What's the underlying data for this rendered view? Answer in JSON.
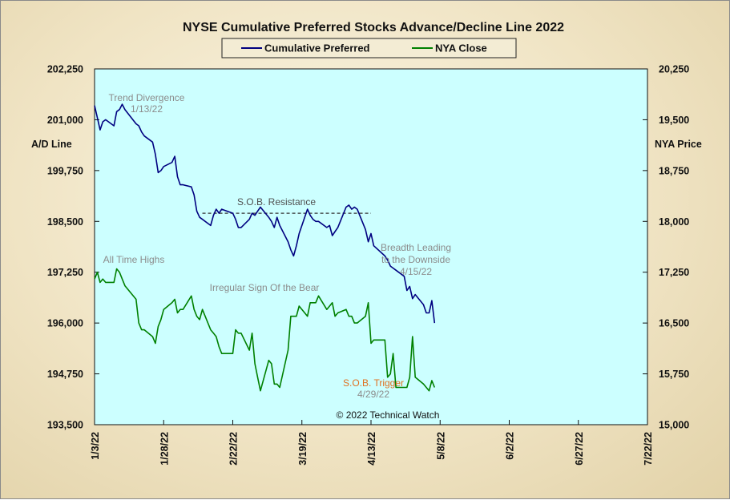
{
  "chart_data": {
    "type": "line",
    "title": "NYSE Cumulative  Preferred Stocks Advance/Decline  Line 2022",
    "ylabel_left": "A/D Line",
    "ylabel_right": "NYA Price",
    "copyright": "© 2022 Technical Watch",
    "legend": {
      "placement": "top-center",
      "entries": [
        "Cumulative Preferred",
        "NYA Close"
      ]
    },
    "plot_background": "#ccffff",
    "grid": false,
    "left_axis": {
      "min": 193500,
      "max": 202250,
      "ticks": [
        "202,250",
        "201,000",
        "199,750",
        "198,500",
        "197,250",
        "196,000",
        "194,750",
        "193,500"
      ]
    },
    "right_axis": {
      "min": 15000,
      "max": 20250,
      "ticks": [
        "20,250",
        "19,500",
        "18,750",
        "18,000",
        "17,250",
        "16,500",
        "15,750",
        "15,000"
      ]
    },
    "x_axis": {
      "range": [
        "2022-01-03",
        "2022-07-22"
      ],
      "ticks": [
        "1/3/22",
        "1/28/22",
        "2/22/22",
        "3/19/22",
        "4/13/22",
        "5/8/22",
        "6/2/22",
        "6/27/22",
        "7/22/22"
      ]
    },
    "series": [
      {
        "name": "Cumulative Preferred",
        "color": "#000080",
        "axis": "left",
        "x": [
          "2022-01-03",
          "2022-01-04",
          "2022-01-05",
          "2022-01-06",
          "2022-01-07",
          "2022-01-10",
          "2022-01-11",
          "2022-01-12",
          "2022-01-13",
          "2022-01-14",
          "2022-01-18",
          "2022-01-19",
          "2022-01-20",
          "2022-01-21",
          "2022-01-24",
          "2022-01-25",
          "2022-01-26",
          "2022-01-27",
          "2022-01-28",
          "2022-01-31",
          "2022-02-01",
          "2022-02-02",
          "2022-02-03",
          "2022-02-04",
          "2022-02-07",
          "2022-02-08",
          "2022-02-09",
          "2022-02-10",
          "2022-02-11",
          "2022-02-14",
          "2022-02-15",
          "2022-02-16",
          "2022-02-17",
          "2022-02-18",
          "2022-02-22",
          "2022-02-23",
          "2022-02-24",
          "2022-02-25",
          "2022-02-28",
          "2022-03-01",
          "2022-03-02",
          "2022-03-03",
          "2022-03-04",
          "2022-03-07",
          "2022-03-08",
          "2022-03-09",
          "2022-03-10",
          "2022-03-11",
          "2022-03-14",
          "2022-03-15",
          "2022-03-16",
          "2022-03-17",
          "2022-03-18",
          "2022-03-21",
          "2022-03-22",
          "2022-03-23",
          "2022-03-24",
          "2022-03-25",
          "2022-03-28",
          "2022-03-29",
          "2022-03-30",
          "2022-03-31",
          "2022-04-01",
          "2022-04-04",
          "2022-04-05",
          "2022-04-06",
          "2022-04-07",
          "2022-04-08",
          "2022-04-11",
          "2022-04-12",
          "2022-04-13",
          "2022-04-14",
          "2022-04-18",
          "2022-04-19",
          "2022-04-20",
          "2022-04-21",
          "2022-04-22",
          "2022-04-25",
          "2022-04-26",
          "2022-04-27",
          "2022-04-28",
          "2022-04-29",
          "2022-05-02",
          "2022-05-03",
          "2022-05-04",
          "2022-05-05",
          "2022-05-06"
        ],
        "values": [
          201350,
          201050,
          200750,
          200950,
          201000,
          200850,
          201200,
          201250,
          201380,
          201250,
          200900,
          200850,
          200700,
          200600,
          200450,
          200150,
          199700,
          199750,
          199850,
          199950,
          200100,
          199600,
          199400,
          199400,
          199350,
          199150,
          198750,
          198600,
          198550,
          198400,
          198650,
          198800,
          198700,
          198800,
          198700,
          198550,
          198350,
          198350,
          198550,
          198700,
          198650,
          198750,
          198850,
          198600,
          198500,
          198350,
          198600,
          198400,
          198000,
          197800,
          197650,
          197900,
          198200,
          198800,
          198650,
          198550,
          198500,
          198500,
          198350,
          198400,
          198150,
          198250,
          198350,
          198850,
          198900,
          198800,
          198850,
          198800,
          198300,
          198000,
          198200,
          197900,
          197650,
          197550,
          197400,
          197350,
          197300,
          197150,
          196800,
          196900,
          196600,
          196700,
          196450,
          196250,
          196250,
          196550,
          196000
        ]
      },
      {
        "name": "NYA Close",
        "color": "#008000",
        "axis": "right",
        "x": [
          "2022-01-03",
          "2022-01-04",
          "2022-01-05",
          "2022-01-06",
          "2022-01-07",
          "2022-01-10",
          "2022-01-11",
          "2022-01-12",
          "2022-01-13",
          "2022-01-14",
          "2022-01-18",
          "2022-01-19",
          "2022-01-20",
          "2022-01-21",
          "2022-01-24",
          "2022-01-25",
          "2022-01-26",
          "2022-01-27",
          "2022-01-28",
          "2022-01-31",
          "2022-02-01",
          "2022-02-02",
          "2022-02-03",
          "2022-02-04",
          "2022-02-07",
          "2022-02-08",
          "2022-02-09",
          "2022-02-10",
          "2022-02-11",
          "2022-02-14",
          "2022-02-15",
          "2022-02-16",
          "2022-02-17",
          "2022-02-18",
          "2022-02-22",
          "2022-02-23",
          "2022-02-24",
          "2022-02-25",
          "2022-02-28",
          "2022-03-01",
          "2022-03-02",
          "2022-03-03",
          "2022-03-04",
          "2022-03-07",
          "2022-03-08",
          "2022-03-09",
          "2022-03-10",
          "2022-03-11",
          "2022-03-14",
          "2022-03-15",
          "2022-03-16",
          "2022-03-17",
          "2022-03-18",
          "2022-03-21",
          "2022-03-22",
          "2022-03-23",
          "2022-03-24",
          "2022-03-25",
          "2022-03-28",
          "2022-03-29",
          "2022-03-30",
          "2022-03-31",
          "2022-04-01",
          "2022-04-04",
          "2022-04-05",
          "2022-04-06",
          "2022-04-07",
          "2022-04-08",
          "2022-04-11",
          "2022-04-12",
          "2022-04-13",
          "2022-04-14",
          "2022-04-18",
          "2022-04-19",
          "2022-04-20",
          "2022-04-21",
          "2022-04-22",
          "2022-04-25",
          "2022-04-26",
          "2022-04-27",
          "2022-04-28",
          "2022-04-29",
          "2022-05-02",
          "2022-05-03",
          "2022-05-04",
          "2022-05-05",
          "2022-05-06"
        ],
        "values": [
          17150,
          17250,
          17100,
          17150,
          17100,
          17100,
          17300,
          17250,
          17150,
          17050,
          16850,
          16500,
          16400,
          16400,
          16300,
          16200,
          16450,
          16550,
          16700,
          16800,
          16850,
          16650,
          16700,
          16700,
          16900,
          16700,
          16600,
          16550,
          16700,
          16400,
          16350,
          16300,
          16150,
          16050,
          16050,
          16400,
          16350,
          16350,
          16100,
          16350,
          15900,
          15700,
          15500,
          15950,
          15900,
          15600,
          15600,
          15550,
          16100,
          16600,
          16600,
          16600,
          16750,
          16600,
          16800,
          16800,
          16800,
          16900,
          16700,
          16750,
          16800,
          16600,
          16650,
          16700,
          16600,
          16600,
          16500,
          16500,
          16600,
          16800,
          16200,
          16250,
          16250,
          15700,
          15750,
          16050,
          15550,
          15550,
          15550,
          15700,
          16300,
          15700,
          15600,
          15550,
          15500,
          15650,
          15550
        ]
      }
    ],
    "annotations": [
      {
        "text": "Trend  Divergence",
        "color": "#8c8c8c"
      },
      {
        "text": "1/13/22",
        "color": "#8c8c8c"
      },
      {
        "text": "S.O.B. Resistance",
        "color": "#505050"
      },
      {
        "text": "All Time Highs",
        "color": "#8c8c8c"
      },
      {
        "text": "Irregular  Sign Of the Bear",
        "color": "#8c8c8c"
      },
      {
        "text": "Breadth Leading",
        "color": "#8c8c8c"
      },
      {
        "text": "to the Downside",
        "color": "#8c8c8c"
      },
      {
        "text": "4/15/22",
        "color": "#8c8c8c"
      },
      {
        "text": "S.O.B. Trigger",
        "color": "#e07020"
      },
      {
        "text": "4/29/22",
        "color": "#8c8c8c"
      }
    ],
    "resistance_line": {
      "value": 198700,
      "from": "2022-02-11",
      "to": "2022-04-13"
    }
  }
}
